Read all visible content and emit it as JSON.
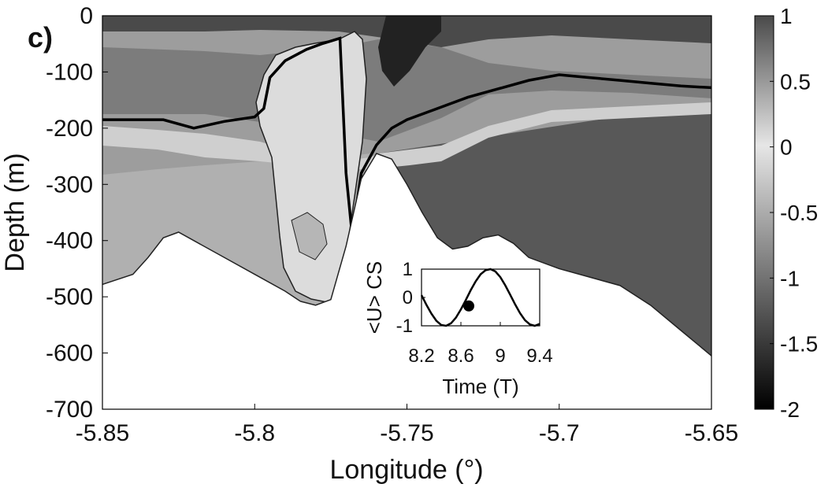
{
  "panel_label": "c)",
  "chart_data": [
    {
      "type": "heatmap",
      "title": "",
      "xlabel": "Longitude (°)",
      "ylabel": "Depth (m)",
      "xlim": [
        -5.85,
        -5.65
      ],
      "ylim": [
        -700,
        0
      ],
      "x_ticks": [
        -5.85,
        -5.8,
        -5.75,
        -5.7,
        -5.65
      ],
      "x_tick_labels": [
        "-5.85",
        "-5.8",
        "-5.75",
        "-5.7",
        "-5.65"
      ],
      "y_ticks": [
        0,
        -100,
        -200,
        -300,
        -400,
        -500,
        -600,
        -700
      ],
      "y_tick_labels": [
        "0",
        "-100",
        "-200",
        "-300",
        "-400",
        "-500",
        "-600",
        "-700"
      ],
      "grid": false,
      "colormap": "gray",
      "bathymetry": {
        "longitude": [
          -5.85,
          -5.84,
          -5.835,
          -5.83,
          -5.825,
          -5.82,
          -5.81,
          -5.8,
          -5.79,
          -5.785,
          -5.78,
          -5.775,
          -5.77,
          -5.765,
          -5.76,
          -5.755,
          -5.75,
          -5.745,
          -5.74,
          -5.735,
          -5.73,
          -5.725,
          -5.72,
          -5.715,
          -5.71,
          -5.7,
          -5.69,
          -5.68,
          -5.67,
          -5.66,
          -5.65
        ],
        "depth": [
          -478,
          -460,
          -430,
          -395,
          -385,
          -400,
          -430,
          -460,
          -490,
          -508,
          -515,
          -505,
          -410,
          -290,
          -245,
          -255,
          -300,
          -350,
          -395,
          -415,
          -410,
          -395,
          -390,
          -405,
          -430,
          -450,
          -465,
          -480,
          -515,
          -560,
          -605
        ]
      },
      "interface_depth": {
        "longitude": [
          -5.85,
          -5.83,
          -5.82,
          -5.81,
          -5.8,
          -5.797,
          -5.795,
          -5.79,
          -5.783,
          -5.778,
          -5.775,
          -5.772,
          -5.77,
          -5.768,
          -5.765,
          -5.76,
          -5.755,
          -5.75,
          -5.74,
          -5.73,
          -5.72,
          -5.71,
          -5.7,
          -5.69,
          -5.68,
          -5.67,
          -5.66,
          -5.65
        ],
        "depth": [
          -185,
          -185,
          -200,
          -188,
          -180,
          -165,
          -110,
          -80,
          -60,
          -50,
          -45,
          -40,
          -280,
          -390,
          -280,
          -230,
          -200,
          -185,
          -165,
          -145,
          -130,
          -115,
          -105,
          -110,
          -115,
          -120,
          -125,
          -128
        ]
      }
    },
    {
      "type": "line",
      "title": "",
      "xlabel": "Time (T)",
      "ylabel": "<U> CS",
      "xlim": [
        8.2,
        9.4
      ],
      "ylim": [
        -1,
        1
      ],
      "x_ticks": [
        8.2,
        8.6,
        9,
        9.4
      ],
      "x_tick_labels": [
        "8.2",
        "8.6",
        "9",
        "9.4"
      ],
      "y_ticks": [
        1,
        0,
        -1
      ],
      "y_tick_labels": [
        "1",
        "0",
        "-1"
      ],
      "series": [
        {
          "x": [
            8.2,
            8.25,
            8.3,
            8.35,
            8.4,
            8.45,
            8.5,
            8.55,
            8.6,
            8.65,
            8.7,
            8.75,
            8.8,
            8.85,
            8.9,
            8.95,
            9.0,
            9.05,
            9.1,
            9.15,
            9.2,
            9.25,
            9.3,
            9.35,
            9.4
          ],
          "values": [
            0.08,
            -0.26,
            -0.57,
            -0.82,
            -0.97,
            -1.0,
            -0.91,
            -0.71,
            -0.42,
            -0.09,
            0.26,
            0.57,
            0.82,
            0.96,
            1.0,
            0.92,
            0.72,
            0.43,
            0.1,
            -0.24,
            -0.55,
            -0.8,
            -0.95,
            -1.0,
            -0.93
          ]
        }
      ],
      "marker": {
        "x": 8.68,
        "y": -0.3
      }
    },
    {
      "type": "colorbar",
      "range": [
        -2,
        1
      ],
      "ticks": [
        1,
        0.5,
        0,
        -0.5,
        -1,
        -1.5,
        -2
      ],
      "tick_labels": [
        "1",
        "0.5",
        "0",
        "-0.5",
        "-1",
        "-1.5",
        "-2"
      ]
    }
  ]
}
